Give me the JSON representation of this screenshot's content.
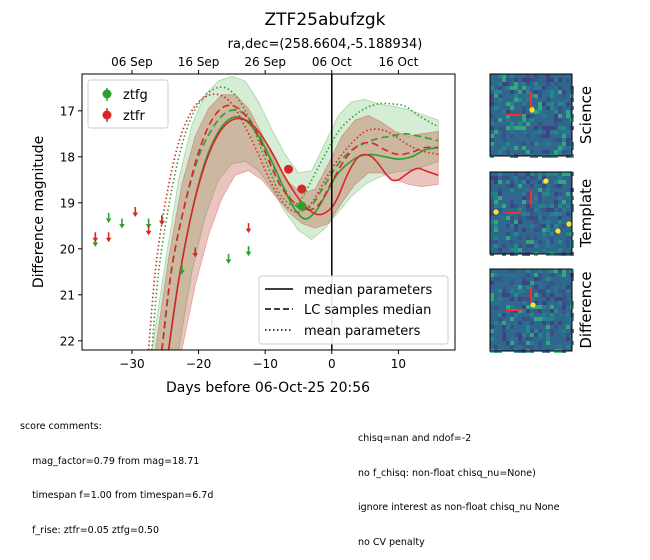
{
  "chart_data": {
    "type": "line",
    "title": "ZTF25abufzgk",
    "subtitle": "ra,dec=(258.6604,-5.188934)",
    "xlabel": "Days before 06-Oct-25 20:56",
    "ylabel": "Difference magnitude",
    "xlim": [
      -37.5,
      18.5
    ],
    "ylim": [
      22.2,
      16.2
    ],
    "y_inverted": true,
    "x_ticks": [
      "−30",
      "−20",
      "−10",
      "0",
      "10"
    ],
    "x_tick_values": [
      -30,
      -20,
      -10,
      0,
      10
    ],
    "y_ticks": [
      "17",
      "18",
      "19",
      "20",
      "21",
      "22"
    ],
    "y_tick_values": [
      17,
      18,
      19,
      20,
      21,
      22
    ],
    "top_ticks": [
      "06 Sep",
      "16 Sep",
      "26 Sep",
      "06 Oct",
      "16 Oct"
    ],
    "top_tick_values": [
      -30,
      -20,
      -10,
      0,
      10
    ],
    "vline_x": 0,
    "grid": false,
    "legend_bands": {
      "position": "top-left",
      "entries": [
        {
          "label": "ztfg",
          "color": "#2ca02c"
        },
        {
          "label": "ztfr",
          "color": "#d62728"
        }
      ]
    },
    "legend_lines": {
      "position": "bottom-right",
      "entries": [
        {
          "label": "median parameters",
          "style": "solid"
        },
        {
          "label": "LC samples median",
          "style": "dashed"
        },
        {
          "label": "mean parameters",
          "style": "dotted"
        }
      ]
    },
    "detections": [
      {
        "band": "ztfr",
        "x": -6.5,
        "y": 18.27,
        "err": 0.06
      },
      {
        "band": "ztfr",
        "x": -4.5,
        "y": 18.7,
        "err": 0.08
      },
      {
        "band": "ztfg",
        "x": -4.5,
        "y": 19.07,
        "err": 0.1
      }
    ],
    "upper_limits": [
      {
        "band": "ztfg",
        "x": -35.5,
        "y": 19.85
      },
      {
        "band": "ztfr",
        "x": -35.5,
        "y": 19.75
      },
      {
        "band": "ztfg",
        "x": -33.5,
        "y": 19.33
      },
      {
        "band": "ztfr",
        "x": -33.5,
        "y": 19.75
      },
      {
        "band": "ztfg",
        "x": -31.5,
        "y": 19.45
      },
      {
        "band": "ztfr",
        "x": -29.5,
        "y": 19.2
      },
      {
        "band": "ztfg",
        "x": -27.5,
        "y": 19.45
      },
      {
        "band": "ztfr",
        "x": -27.5,
        "y": 19.6
      },
      {
        "band": "ztfg",
        "x": -25.5,
        "y": 19.38
      },
      {
        "band": "ztfr",
        "x": -25.5,
        "y": 19.38
      },
      {
        "band": "ztfg",
        "x": -22.5,
        "y": 20.45
      },
      {
        "band": "ztfr",
        "x": -20.5,
        "y": 20.08
      },
      {
        "band": "ztfg",
        "x": -15.5,
        "y": 20.22
      },
      {
        "band": "ztfr",
        "x": -12.5,
        "y": 19.55
      },
      {
        "band": "ztfg",
        "x": -12.5,
        "y": 20.05
      }
    ],
    "series": [
      {
        "band": "ztfg",
        "style": "solid",
        "color": "#2ca02c",
        "points": [
          [
            -24.5,
            22.2
          ],
          [
            -23,
            20.7
          ],
          [
            -21,
            19.2
          ],
          [
            -19,
            18.1
          ],
          [
            -17,
            17.45
          ],
          [
            -15,
            17.15
          ],
          [
            -13,
            17.2
          ],
          [
            -11,
            17.55
          ],
          [
            -9,
            18.1
          ],
          [
            -7,
            18.75
          ],
          [
            -5.5,
            19.15
          ],
          [
            -4,
            19.35
          ],
          [
            -2.5,
            19.2
          ],
          [
            -1,
            18.85
          ],
          [
            0.5,
            18.45
          ],
          [
            2,
            18.2
          ],
          [
            4,
            18.0
          ],
          [
            6,
            17.95
          ],
          [
            8,
            18.0
          ],
          [
            10,
            18.05
          ],
          [
            12,
            18.0
          ],
          [
            14,
            17.85
          ],
          [
            16,
            17.8
          ]
        ]
      },
      {
        "band": "ztfg",
        "style": "dashed",
        "color": "#2ca02c",
        "points": [
          [
            -25.5,
            22.2
          ],
          [
            -24,
            20.4
          ],
          [
            -22,
            19.0
          ],
          [
            -20,
            18.0
          ],
          [
            -18,
            17.4
          ],
          [
            -16,
            17.05
          ],
          [
            -14,
            17.0
          ],
          [
            -12,
            17.25
          ],
          [
            -10,
            17.8
          ],
          [
            -8,
            18.45
          ],
          [
            -6,
            18.95
          ],
          [
            -4.5,
            19.15
          ],
          [
            -3,
            19.05
          ],
          [
            -1,
            18.6
          ],
          [
            1,
            18.15
          ],
          [
            3,
            17.85
          ],
          [
            5,
            17.7
          ],
          [
            7,
            17.6
          ],
          [
            9,
            17.55
          ],
          [
            11,
            17.5
          ],
          [
            13,
            17.55
          ],
          [
            16,
            17.65
          ]
        ]
      },
      {
        "band": "ztfg",
        "style": "dotted",
        "color": "#2ca02c",
        "points": [
          [
            -27,
            22.2
          ],
          [
            -26,
            20.5
          ],
          [
            -24,
            18.7
          ],
          [
            -22,
            17.5
          ],
          [
            -20,
            16.85
          ],
          [
            -18,
            16.55
          ],
          [
            -16,
            16.5
          ],
          [
            -14,
            16.75
          ],
          [
            -12,
            17.3
          ],
          [
            -10,
            18.05
          ],
          [
            -8,
            18.75
          ],
          [
            -6,
            19.05
          ],
          [
            -4.5,
            18.9
          ],
          [
            -3,
            18.5
          ],
          [
            -1,
            17.95
          ],
          [
            1,
            17.45
          ],
          [
            3,
            17.15
          ],
          [
            5,
            16.95
          ],
          [
            7,
            16.85
          ],
          [
            9,
            16.85
          ],
          [
            11,
            16.9
          ],
          [
            13,
            17.1
          ],
          [
            16,
            17.35
          ]
        ]
      },
      {
        "band": "ztfr",
        "style": "solid",
        "color": "#d62728",
        "points": [
          [
            -24.5,
            22.2
          ],
          [
            -23,
            20.7
          ],
          [
            -21,
            19.2
          ],
          [
            -19,
            18.15
          ],
          [
            -17,
            17.5
          ],
          [
            -15,
            17.2
          ],
          [
            -13,
            17.2
          ],
          [
            -11,
            17.45
          ],
          [
            -9,
            17.9
          ],
          [
            -7,
            18.45
          ],
          [
            -5,
            18.9
          ],
          [
            -3,
            19.2
          ],
          [
            -1.5,
            19.25
          ],
          [
            0,
            19.1
          ],
          [
            1,
            18.85
          ],
          [
            2,
            18.5
          ],
          [
            3,
            18.2
          ],
          [
            4,
            18.0
          ],
          [
            5,
            17.95
          ],
          [
            6,
            18.0
          ],
          [
            7,
            18.15
          ],
          [
            8,
            18.35
          ],
          [
            9,
            18.5
          ],
          [
            10,
            18.5
          ],
          [
            11,
            18.4
          ],
          [
            12,
            18.3
          ],
          [
            13,
            18.25
          ],
          [
            14,
            18.3
          ],
          [
            16,
            18.4
          ]
        ]
      },
      {
        "band": "ztfr",
        "style": "dashed",
        "color": "#d62728",
        "points": [
          [
            -25.5,
            22.2
          ],
          [
            -24,
            20.4
          ],
          [
            -22,
            19.0
          ],
          [
            -20,
            17.9
          ],
          [
            -18,
            17.2
          ],
          [
            -16,
            16.9
          ],
          [
            -14,
            16.95
          ],
          [
            -12,
            17.3
          ],
          [
            -10,
            17.9
          ],
          [
            -8,
            18.55
          ],
          [
            -6,
            18.95
          ],
          [
            -4,
            19.15
          ],
          [
            -2,
            19.05
          ],
          [
            0,
            18.55
          ],
          [
            2,
            18.05
          ],
          [
            4,
            17.75
          ],
          [
            6,
            17.7
          ],
          [
            8,
            17.85
          ],
          [
            10,
            17.95
          ],
          [
            12,
            17.9
          ],
          [
            14,
            17.8
          ],
          [
            16,
            17.8
          ]
        ]
      },
      {
        "band": "ztfr",
        "style": "dotted",
        "color": "#d62728",
        "points": [
          [
            -27.5,
            22.2
          ],
          [
            -26.5,
            20.5
          ],
          [
            -25,
            19.0
          ],
          [
            -23,
            17.7
          ],
          [
            -21,
            17.0
          ],
          [
            -19,
            16.7
          ],
          [
            -17,
            16.65
          ],
          [
            -15,
            16.85
          ],
          [
            -13,
            17.35
          ],
          [
            -11,
            17.95
          ],
          [
            -9,
            18.6
          ],
          [
            -7,
            19.05
          ],
          [
            -5,
            19.2
          ],
          [
            -3,
            19.0
          ],
          [
            -1,
            18.5
          ],
          [
            1,
            18.05
          ],
          [
            3,
            17.7
          ],
          [
            5,
            17.45
          ],
          [
            7,
            17.4
          ],
          [
            9,
            17.5
          ],
          [
            11,
            17.7
          ],
          [
            13,
            17.85
          ],
          [
            16,
            17.95
          ]
        ]
      }
    ],
    "bands": [
      {
        "band": "ztfg",
        "color": "#2ca02c",
        "upper": [
          [
            -27,
            22.2
          ],
          [
            -25,
            20.3
          ],
          [
            -23,
            18.5
          ],
          [
            -21,
            17.3
          ],
          [
            -19,
            16.65
          ],
          [
            -17,
            16.35
          ],
          [
            -15,
            16.25
          ],
          [
            -13,
            16.35
          ],
          [
            -11,
            16.8
          ],
          [
            -9,
            17.4
          ],
          [
            -7,
            17.95
          ],
          [
            -5,
            18.35
          ],
          [
            -3,
            18.3
          ],
          [
            -1,
            17.7
          ],
          [
            1,
            17.1
          ],
          [
            3,
            16.8
          ],
          [
            5,
            16.75
          ],
          [
            7,
            16.85
          ],
          [
            9,
            16.9
          ],
          [
            11,
            16.95
          ],
          [
            13,
            17.05
          ],
          [
            16,
            17.2
          ]
        ],
        "lower": [
          [
            16,
            18.1
          ],
          [
            13,
            18.25
          ],
          [
            11,
            18.3
          ],
          [
            9,
            18.35
          ],
          [
            7,
            18.45
          ],
          [
            5,
            18.6
          ],
          [
            3,
            18.85
          ],
          [
            1,
            19.2
          ],
          [
            -1,
            19.55
          ],
          [
            -3,
            19.8
          ],
          [
            -5,
            19.6
          ],
          [
            -7,
            19.2
          ],
          [
            -9,
            18.7
          ],
          [
            -11,
            18.3
          ],
          [
            -13,
            18.1
          ],
          [
            -15,
            18.15
          ],
          [
            -17,
            18.5
          ],
          [
            -19,
            19.3
          ],
          [
            -21,
            20.5
          ],
          [
            -23,
            22.2
          ]
        ]
      },
      {
        "band": "ztfr",
        "color": "#d62728",
        "upper": [
          [
            -26.5,
            22.2
          ],
          [
            -24.5,
            20.2
          ],
          [
            -22.5,
            18.6
          ],
          [
            -20.5,
            17.55
          ],
          [
            -18.5,
            16.95
          ],
          [
            -16.5,
            16.65
          ],
          [
            -14.5,
            16.65
          ],
          [
            -12.5,
            16.95
          ],
          [
            -10.5,
            17.5
          ],
          [
            -8.5,
            18.1
          ],
          [
            -6.5,
            18.55
          ],
          [
            -4.5,
            18.8
          ],
          [
            -2.5,
            18.7
          ],
          [
            -0.5,
            18.15
          ],
          [
            1.5,
            17.55
          ],
          [
            3.5,
            17.2
          ],
          [
            5.5,
            17.1
          ],
          [
            7.5,
            17.25
          ],
          [
            9.5,
            17.45
          ],
          [
            11.5,
            17.55
          ],
          [
            13.5,
            17.5
          ],
          [
            16,
            17.45
          ]
        ],
        "lower": [
          [
            16,
            18.6
          ],
          [
            13.5,
            18.65
          ],
          [
            11.5,
            18.6
          ],
          [
            9.5,
            18.5
          ],
          [
            7.5,
            18.35
          ],
          [
            5.5,
            18.35
          ],
          [
            3.5,
            18.6
          ],
          [
            1.5,
            19.0
          ],
          [
            -0.5,
            19.45
          ],
          [
            -2.5,
            19.55
          ],
          [
            -4.5,
            19.45
          ],
          [
            -6.5,
            19.2
          ],
          [
            -8.5,
            18.85
          ],
          [
            -10.5,
            18.5
          ],
          [
            -12.5,
            18.3
          ],
          [
            -14.5,
            18.4
          ],
          [
            -16.5,
            18.9
          ],
          [
            -18.5,
            19.7
          ],
          [
            -20.5,
            20.8
          ],
          [
            -22.5,
            22.2
          ]
        ]
      }
    ]
  },
  "cutouts": [
    {
      "label": "Science"
    },
    {
      "label": "Template"
    },
    {
      "label": "Difference"
    }
  ],
  "comments": {
    "left": [
      "score comments:",
      "    mag_factor=0.79 from mag=18.71",
      "    timespan f=1.00 from timespan=6.7d",
      "    f_rise: ztfr=0.05 ztfg=0.50"
    ],
    "right": [
      "chisq=nan and ndof=-2",
      "no f_chisq: non-float chisq_nu=None)",
      "ignore interest as non-float chisq_nu None",
      "no CV penalty"
    ]
  }
}
